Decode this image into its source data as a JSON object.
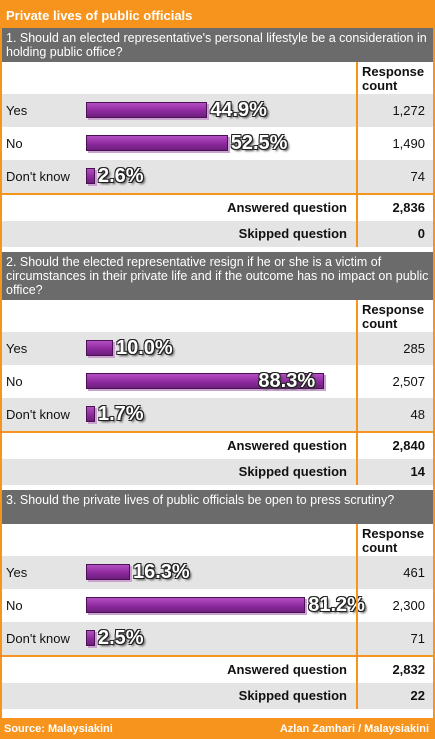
{
  "title": "Private lives of public officials",
  "response_count_label": "Response count",
  "answered_label": "Answered question",
  "skipped_label": "Skipped question",
  "footer": {
    "source": "Source: Malaysiakini",
    "credit": "Azlan Zamhari / Malaysiakini"
  },
  "colors": {
    "accent": "#f7941d",
    "bar": "#8e2a9f",
    "question_bg": "#6b6b6b",
    "row_shade": "#e4e4e4"
  },
  "chart_data": [
    {
      "type": "bar",
      "title": "1. Should an elected representative's personal lifestyle be a consideration in holding public office?",
      "categories": [
        "Yes",
        "No",
        "Don't know"
      ],
      "values": [
        44.9,
        52.5,
        2.6
      ],
      "value_labels": [
        "44.9%",
        "52.5%",
        "2.6%"
      ],
      "counts": [
        "1,272",
        "1,490",
        "74"
      ],
      "answered": "2,836",
      "skipped": "0",
      "xlim": [
        0,
        100
      ]
    },
    {
      "type": "bar",
      "title": "2. Should the elected representative resign if he or she is a victim of circumstances in their private life and if the outcome has no impact on public office?",
      "categories": [
        "Yes",
        "No",
        "Don't know"
      ],
      "values": [
        10.0,
        88.3,
        1.7
      ],
      "value_labels": [
        "10.0%",
        "88.3%",
        "1.7%"
      ],
      "counts": [
        "285",
        "2,507",
        "48"
      ],
      "answered": "2,840",
      "skipped": "14",
      "xlim": [
        0,
        100
      ]
    },
    {
      "type": "bar",
      "title": "3. Should the private lives of public officials be open to press scrutiny?",
      "categories": [
        "Yes",
        "No",
        "Don't know"
      ],
      "values": [
        16.3,
        81.2,
        2.5
      ],
      "value_labels": [
        "16.3%",
        "81.2%",
        "2.5%"
      ],
      "counts": [
        "461",
        "2,300",
        "71"
      ],
      "answered": "2,832",
      "skipped": "22",
      "xlim": [
        0,
        100
      ]
    }
  ]
}
